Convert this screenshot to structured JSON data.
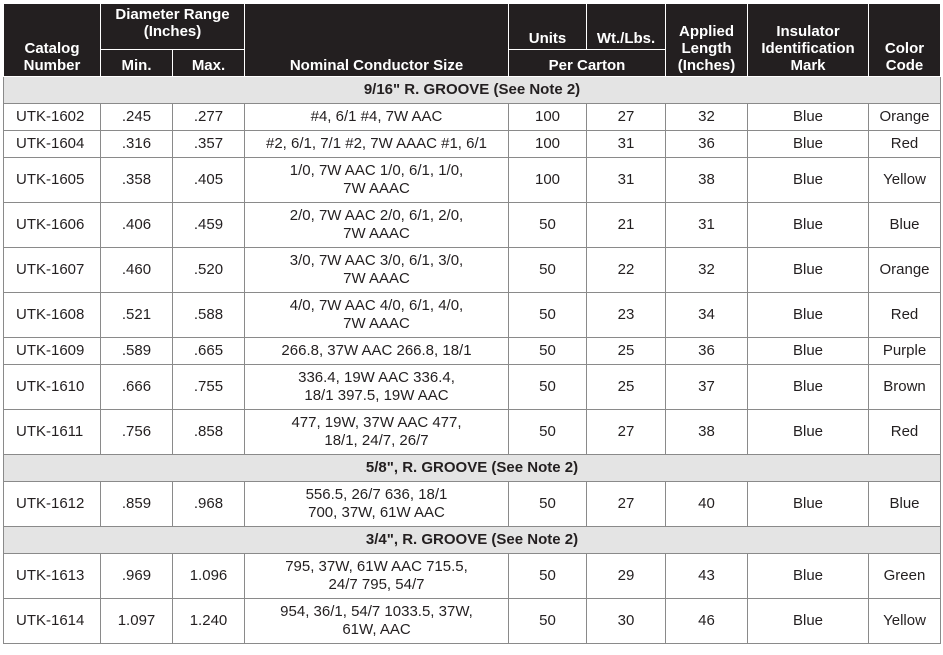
{
  "table": {
    "headers": {
      "catalog": "Catalog\nNumber",
      "diameter": "Diameter Range\n(Inches)",
      "min": "Min.",
      "max": "Max.",
      "nominal": "Nominal Conductor Size",
      "units": "Units",
      "weight": "Wt./Lbs.",
      "per_carton": "Per Carton",
      "applied": "Applied\nLength\n(Inches)",
      "insulator": "Insulator\nIdentification\nMark",
      "color": "Color\nCode"
    },
    "sections": [
      {
        "title": "9/16\" R. GROOVE (See Note 2)",
        "rows": [
          [
            "UTK-1602",
            ".245",
            ".277",
            "#4, 6/1 #4, 7W AAC",
            "100",
            "27",
            "32",
            "Blue",
            "Orange"
          ],
          [
            "UTK-1604",
            ".316",
            ".357",
            "#2, 6/1, 7/1 #2, 7W AAAC #1, 6/1",
            "100",
            "31",
            "36",
            "Blue",
            "Red"
          ],
          [
            "UTK-1605",
            ".358",
            ".405",
            "1/0, 7W AAC 1/0, 6/1, 1/0,\n7W AAAC",
            "100",
            "31",
            "38",
            "Blue",
            "Yellow"
          ],
          [
            "UTK-1606",
            ".406",
            ".459",
            "2/0, 7W AAC 2/0, 6/1, 2/0,\n7W AAAC",
            "50",
            "21",
            "31",
            "Blue",
            "Blue"
          ],
          [
            "UTK-1607",
            ".460",
            ".520",
            "3/0, 7W AAC 3/0, 6/1, 3/0,\n7W AAAC",
            "50",
            "22",
            "32",
            "Blue",
            "Orange"
          ],
          [
            "UTK-1608",
            ".521",
            ".588",
            "4/0, 7W AAC 4/0, 6/1, 4/0,\n7W AAAC",
            "50",
            "23",
            "34",
            "Blue",
            "Red"
          ],
          [
            "UTK-1609",
            ".589",
            ".665",
            "266.8, 37W AAC 266.8, 18/1",
            "50",
            "25",
            "36",
            "Blue",
            "Purple"
          ],
          [
            "UTK-1610",
            ".666",
            ".755",
            "336.4, 19W AAC 336.4,\n18/1 397.5, 19W AAC",
            "50",
            "25",
            "37",
            "Blue",
            "Brown"
          ],
          [
            "UTK-1611",
            ".756",
            ".858",
            "477, 19W, 37W AAC 477,\n18/1, 24/7, 26/7",
            "50",
            "27",
            "38",
            "Blue",
            "Red"
          ]
        ]
      },
      {
        "title": "5/8\", R. GROOVE (See Note 2)",
        "rows": [
          [
            "UTK-1612",
            ".859",
            ".968",
            "556.5, 26/7 636, 18/1\n700, 37W, 61W AAC",
            "50",
            "27",
            "40",
            "Blue",
            "Blue"
          ]
        ]
      },
      {
        "title": "3/4\", R. GROOVE (See Note 2)",
        "rows": [
          [
            "UTK-1613",
            ".969",
            "1.096",
            "795, 37W, 61W AAC 715.5,\n24/7 795, 54/7",
            "50",
            "29",
            "43",
            "Blue",
            "Green"
          ],
          [
            "UTK-1614",
            "1.097",
            "1.240",
            "954, 36/1, 54/7 1033.5, 37W,\n61W, AAC",
            "50",
            "30",
            "46",
            "Blue",
            "Yellow"
          ]
        ]
      }
    ]
  }
}
